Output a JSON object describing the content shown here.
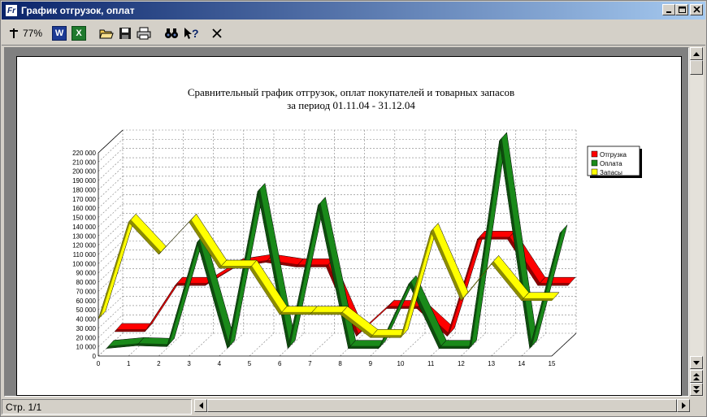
{
  "window": {
    "title": "График отгрузок, оплат"
  },
  "toolbar": {
    "zoom": "77%",
    "word_label": "W",
    "excel_label": "X",
    "help_label": "?"
  },
  "status": {
    "page": "Стр. 1/1"
  },
  "colors": {
    "shipment": "#ff0000",
    "payment": "#1a8a1a",
    "stock": "#ffff00",
    "title_bar": "#0a246a"
  },
  "chart_data": {
    "type": "line",
    "title": "Сравнительный график отгрузок, оплат покупателей и товарных запасов",
    "subtitle": "за период 01.11.04 - 31.12.04",
    "x": [
      0,
      1,
      2,
      3,
      4,
      5,
      6,
      7,
      8,
      9,
      10,
      11,
      12,
      13,
      14,
      15
    ],
    "x_ticks": [
      "0",
      "1",
      "2",
      "3",
      "4",
      "5",
      "6",
      "7",
      "8",
      "9",
      "10",
      "11",
      "12",
      "13",
      "14",
      "15"
    ],
    "y_ticks": [
      "0",
      "10 000",
      "20 000",
      "30 000",
      "40 000",
      "50 000",
      "60 000",
      "70 000",
      "80 000",
      "90 000",
      "100 000",
      "110 000",
      "120 000",
      "130 000",
      "140 000",
      "150 000",
      "160 000",
      "170 000",
      "180 000",
      "190 000",
      "200 000",
      "210 000",
      "220 000"
    ],
    "ylim": [
      0,
      220000
    ],
    "grid": true,
    "legend_position": "right",
    "series": [
      {
        "name": "Отгрузка",
        "color": "#ff0000",
        "values": [
          10000,
          10000,
          60000,
          60000,
          80000,
          85000,
          80000,
          80000,
          5000,
          35000,
          35000,
          5000,
          110000,
          110000,
          60000,
          60000
        ]
      },
      {
        "name": "Оплата",
        "color": "#1a8a1a",
        "values": [
          0,
          3000,
          2000,
          115000,
          0,
          170000,
          0,
          155000,
          0,
          0,
          70000,
          0,
          0,
          225000,
          0,
          125000
        ]
      },
      {
        "name": "Запасы",
        "color": "#ffff00",
        "values": [
          40000,
          145000,
          110000,
          145000,
          95000,
          95000,
          45000,
          45000,
          45000,
          20000,
          20000,
          135000,
          60000,
          100000,
          60000,
          60000
        ]
      }
    ]
  }
}
